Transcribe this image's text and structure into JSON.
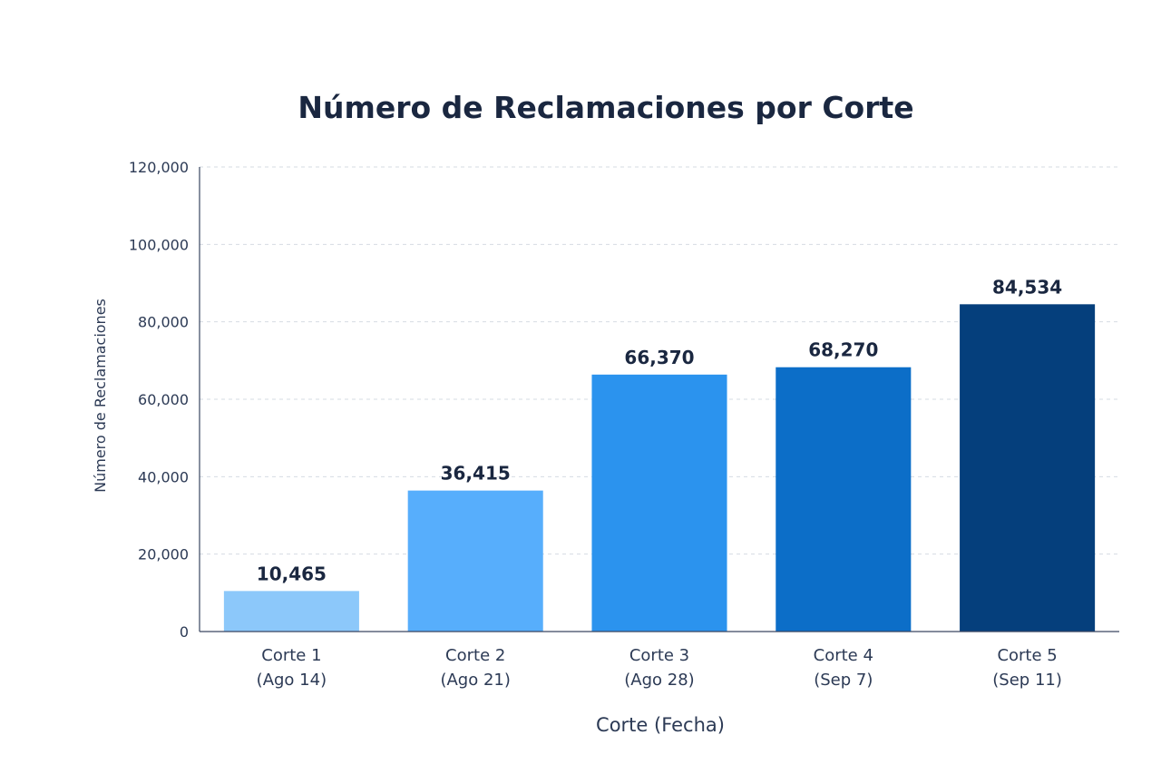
{
  "chart_data": {
    "type": "bar",
    "title": "Número de Reclamaciones por Corte",
    "xlabel": "Corte (Fecha)",
    "ylabel": "Número de Reclamaciones",
    "ylim": [
      0,
      120000
    ],
    "yticks": [
      0,
      20000,
      40000,
      60000,
      80000,
      100000,
      120000
    ],
    "ytick_labels": [
      "0",
      "20,000",
      "40,000",
      "60,000",
      "80,000",
      "100,000",
      "120,000"
    ],
    "grid": true,
    "categories": [
      {
        "line1": "Corte 1",
        "line2": "(Ago 14)"
      },
      {
        "line1": "Corte 2",
        "line2": "(Ago 21)"
      },
      {
        "line1": "Corte 3",
        "line2": "(Ago 28)"
      },
      {
        "line1": "Corte 4",
        "line2": "(Sep 7)"
      },
      {
        "line1": "Corte 5",
        "line2": "(Sep 11)"
      }
    ],
    "values": [
      10465,
      36415,
      66370,
      68270,
      84534
    ],
    "value_labels": [
      "10,465",
      "36,415",
      "66,370",
      "68,270",
      "84,534"
    ],
    "bar_colors": [
      "#8cc8fa",
      "#57aefc",
      "#2b93ee",
      "#0c6ec8",
      "#053f7c"
    ]
  }
}
